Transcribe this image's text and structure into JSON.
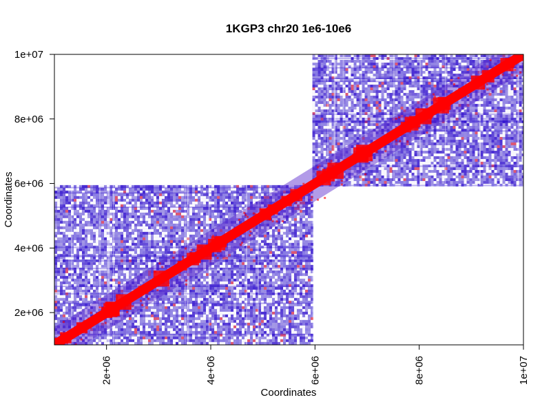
{
  "chart_data": {
    "type": "heatmap",
    "title": "1KGP3 chr20 1e6-10e6",
    "xlabel": "Coordinates",
    "ylabel": "Coordinates",
    "xlim": [
      1000000,
      10000000
    ],
    "ylim": [
      1000000,
      10000000
    ],
    "xticks": [
      {
        "value": 2000000,
        "label": "2e+06"
      },
      {
        "value": 4000000,
        "label": "4e+06"
      },
      {
        "value": 6000000,
        "label": "6e+06"
      },
      {
        "value": 8000000,
        "label": "8e+06"
      },
      {
        "value": 10000000,
        "label": "1e+07"
      }
    ],
    "yticks": [
      {
        "value": 2000000,
        "label": "2e+06"
      },
      {
        "value": 4000000,
        "label": "4e+06"
      },
      {
        "value": 6000000,
        "label": "6e+06"
      },
      {
        "value": 8000000,
        "label": "8e+06"
      },
      {
        "value": 10000000,
        "label": "1e+07"
      }
    ],
    "blocks": [
      {
        "x": [
          1000000,
          5950000
        ],
        "y": [
          1000000,
          5950000
        ]
      },
      {
        "x": [
          5950000,
          10000000
        ],
        "y": [
          5950000,
          10000000
        ]
      }
    ],
    "colors": {
      "low": "#2200cc",
      "high": "#ff0000",
      "background": "#ffffff"
    },
    "grid": false
  }
}
